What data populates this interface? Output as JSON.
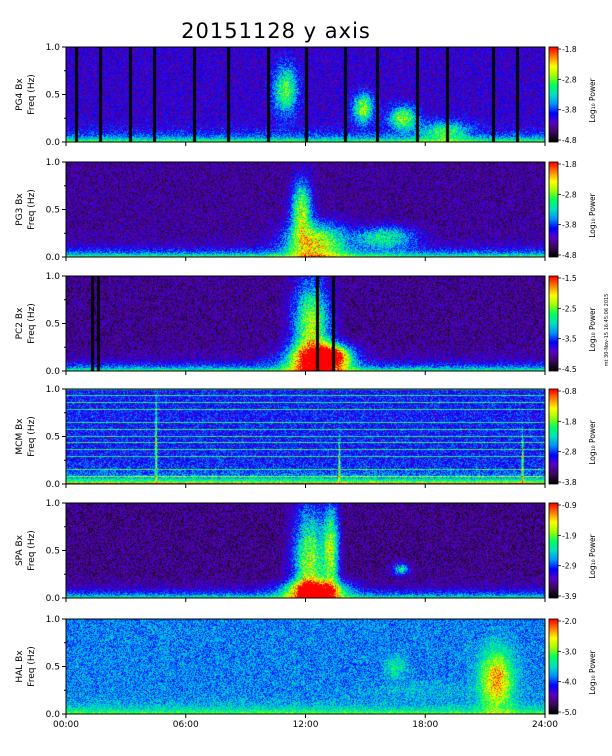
{
  "chart_data": {
    "type": "heatmap",
    "title": "20151128 y axis",
    "credit": "mt 30-Nov-15 16:45:06 2015",
    "xlabel": "",
    "x_ticklabels": [
      "00:00",
      "06:00",
      "12:00",
      "18:00",
      "24:00"
    ],
    "xlim_hours": [
      0,
      24
    ],
    "y_ticklabels": [
      "0.0",
      "0.5",
      "1.0"
    ],
    "ylim": [
      0,
      1.0
    ],
    "colorbar_label": "Log₁₀ Power",
    "colormap": [
      "#000000",
      "#3a0a5a",
      "#5a00c8",
      "#0000ff",
      "#0090ff",
      "#00e0c0",
      "#00ff60",
      "#a0ff00",
      "#ffff00",
      "#ff8000",
      "#ff0000"
    ],
    "panels": [
      {
        "id": "PG4",
        "ylabel_station": "PG4 Bx",
        "ylabel_freq": "Freq (Hz)",
        "colorbar_ticks": [
          "-1.8",
          "-2.8",
          "-3.8",
          "-4.8"
        ],
        "background_level": 0.22,
        "low_freq_level": 0.42,
        "gap_lines_hours": [
          0.5,
          1.7,
          3.2,
          4.4,
          6.4,
          8.1,
          10.1,
          12.0,
          14.0,
          15.6,
          17.6,
          19.1,
          21.4,
          22.6
        ],
        "features": [
          {
            "t": 11.0,
            "f": 0.55,
            "dt": 0.6,
            "df": 0.25,
            "level": 0.65
          },
          {
            "t": 14.9,
            "f": 0.35,
            "dt": 0.5,
            "df": 0.15,
            "level": 0.72
          },
          {
            "t": 16.9,
            "f": 0.25,
            "dt": 0.7,
            "df": 0.12,
            "level": 0.7
          },
          {
            "t": 19.0,
            "f": 0.12,
            "dt": 1.2,
            "df": 0.1,
            "level": 0.55
          }
        ]
      },
      {
        "id": "PG3",
        "ylabel_station": "PG3 Bx",
        "ylabel_freq": "Freq (Hz)",
        "colorbar_ticks": [
          "-1.8",
          "-2.8",
          "-3.8",
          "-4.8"
        ],
        "background_level": 0.16,
        "low_freq_level": 0.45,
        "gap_lines_hours": [],
        "features": [
          {
            "t": 11.8,
            "f": 0.5,
            "dt": 0.5,
            "df": 0.3,
            "level": 0.7
          },
          {
            "t": 12.5,
            "f": 0.15,
            "dt": 1.5,
            "df": 0.2,
            "level": 0.75
          },
          {
            "t": 16.0,
            "f": 0.2,
            "dt": 1.5,
            "df": 0.12,
            "level": 0.55
          }
        ]
      },
      {
        "id": "PC2",
        "ylabel_station": "PC2 Bx",
        "ylabel_freq": "Freq (Hz)",
        "colorbar_ticks": [
          "-1.5",
          "-2.5",
          "-3.5",
          "-4.5"
        ],
        "background_level": 0.15,
        "low_freq_level": 0.45,
        "gap_lines_hours": [
          1.3,
          1.6,
          12.6,
          13.4
        ],
        "features": [
          {
            "t": 12.3,
            "f": 0.45,
            "dt": 0.9,
            "df": 0.5,
            "level": 0.72
          },
          {
            "t": 12.6,
            "f": 0.12,
            "dt": 1.6,
            "df": 0.15,
            "level": 0.82
          },
          {
            "t": 13.4,
            "f": 0.15,
            "dt": 0.8,
            "df": 0.12,
            "level": 0.7
          }
        ]
      },
      {
        "id": "MCM",
        "ylabel_station": "MCM Bx",
        "ylabel_freq": "Freq (Hz)",
        "colorbar_ticks": [
          "-0.8",
          "-1.8",
          "-2.8",
          "-3.8"
        ],
        "background_level": 0.3,
        "low_freq_level": 0.45,
        "harmonic_lines": true,
        "gap_lines_hours": [],
        "features": [
          {
            "t": 4.5,
            "f": 0.4,
            "dt": 0.05,
            "df": 0.5,
            "level": 0.7
          },
          {
            "t": 13.7,
            "f": 0.2,
            "dt": 0.05,
            "df": 0.3,
            "level": 0.7
          },
          {
            "t": 22.9,
            "f": 0.2,
            "dt": 0.05,
            "df": 0.3,
            "level": 0.7
          }
        ]
      },
      {
        "id": "SPA",
        "ylabel_station": "SPA Bx",
        "ylabel_freq": "Freq (Hz)",
        "colorbar_ticks": [
          "-0.9",
          "-1.9",
          "-2.9",
          "-3.9"
        ],
        "background_level": 0.14,
        "low_freq_level": 0.42,
        "gap_lines_hours": [],
        "features": [
          {
            "t": 12.2,
            "f": 0.35,
            "dt": 0.8,
            "df": 0.6,
            "level": 0.7
          },
          {
            "t": 12.5,
            "f": 0.08,
            "dt": 1.5,
            "df": 0.1,
            "level": 0.85
          },
          {
            "t": 13.3,
            "f": 0.5,
            "dt": 0.4,
            "df": 0.5,
            "level": 0.65
          },
          {
            "t": 16.8,
            "f": 0.3,
            "dt": 0.4,
            "df": 0.06,
            "level": 0.55
          }
        ]
      },
      {
        "id": "HAL",
        "ylabel_station": "HAL Bx",
        "ylabel_freq": "Freq (Hz)",
        "colorbar_ticks": [
          "-2.0",
          "-3.0",
          "-4.0",
          "-5.0"
        ],
        "background_level": 0.4,
        "low_freq_level": 0.25,
        "gap_lines_hours": [],
        "features": [
          {
            "t": 21.6,
            "f": 0.35,
            "dt": 0.8,
            "df": 0.3,
            "level": 0.88
          },
          {
            "t": 16.5,
            "f": 0.5,
            "dt": 0.5,
            "df": 0.12,
            "level": 0.55
          },
          {
            "t": 18.0,
            "f": 0.25,
            "dt": 3.0,
            "df": 0.08,
            "level": 0.45
          }
        ]
      }
    ]
  }
}
